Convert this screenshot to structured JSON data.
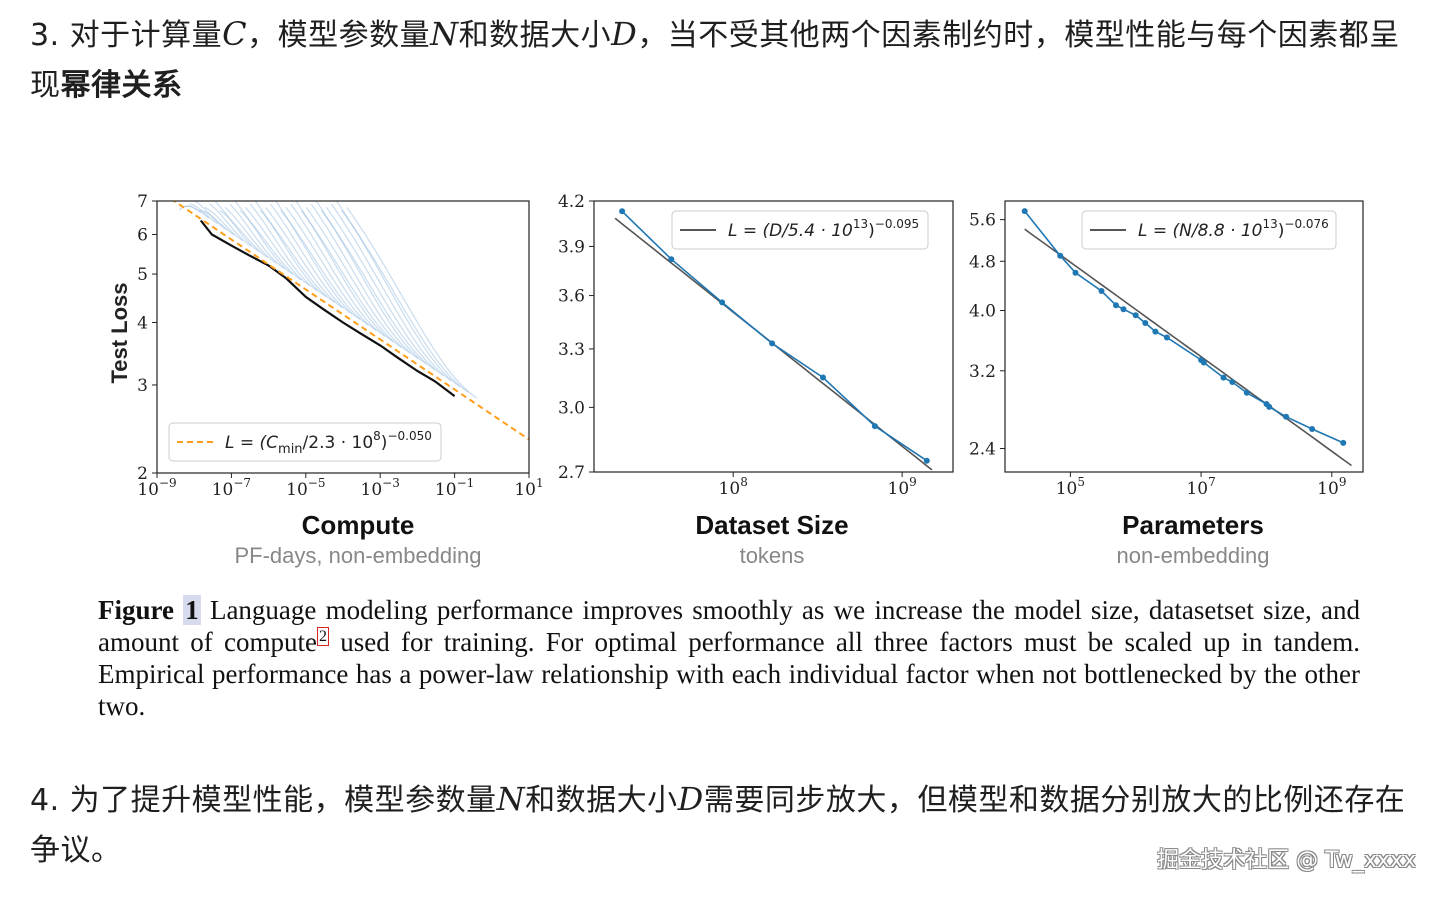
{
  "paragraph1": {
    "prefix": "3. 对于计算量",
    "var_c": "C",
    "part2": "，模型参数量",
    "var_n": "N",
    "part3": "和数据大小",
    "var_d": "D",
    "part4": "，当不受其他两个因素制约时，模型性能与每个因素都呈现",
    "bold": "幂律关系"
  },
  "paragraph2": {
    "prefix": "4. 为了提升模型性能，模型参数量",
    "var_n": "N",
    "part2": "和数据大小",
    "var_d": "D",
    "part3": "需要同步放大，但模型和数据分别放大的比例还存在争议。"
  },
  "figure": {
    "caption_label": "Figure",
    "caption_num": "1",
    "caption_text_a": "  Language modeling performance improves smoothly as we increase the model size, datasetset size, and amount of compute",
    "footnote": "2",
    "caption_text_b": " used for training.  For optimal performance all three factors must be scaled up in tandem.  Empirical performance has a power-law relationship with each individual factor when not bottlenecked by the other two."
  },
  "colors": {
    "blue": "#1f77b4",
    "orange": "#ff9e1b",
    "fit_line": "#555555",
    "faint_blue": "#9dbfe0"
  },
  "watermark": "掘金技术社区 @ Tw_xxxx",
  "chart_data": [
    {
      "type": "line",
      "title": "Compute",
      "subtitle": "PF-days, non-embedding",
      "ylabel": "Test Loss",
      "xscale": "log",
      "yscale": "log",
      "xlim": [
        1e-09,
        10
      ],
      "ylim": [
        2,
        7
      ],
      "xticks": [
        1e-09,
        1e-07,
        1e-05,
        0.001,
        0.1,
        10
      ],
      "xtick_labels": [
        [
          "10",
          "−9"
        ],
        [
          "10",
          "−7"
        ],
        [
          "10",
          "−5"
        ],
        [
          "10",
          "−3"
        ],
        [
          "10",
          "−1"
        ],
        [
          "10",
          "1"
        ]
      ],
      "yticks": [
        2,
        3,
        4,
        5,
        6,
        7
      ],
      "ytick_labels": [
        "2",
        "3",
        "4",
        "5",
        "6",
        "7"
      ],
      "legend": {
        "position": "bottom-left",
        "text": "L = (C",
        "sub": "min",
        "text2": "/2.3 · 10",
        "sup1": "8",
        "text3": ")",
        "sup2": "−0.050"
      },
      "fit": {
        "coef": 230000000.0,
        "exp": -0.05,
        "x_from": 1.4e-09,
        "x_to": 10
      },
      "frontier": {
        "x": [
          1.5e-08,
          3e-08,
          1e-07,
          3e-07,
          1e-06,
          3e-06,
          1e-05,
          3e-05,
          0.0001,
          0.0003,
          0.001,
          0.003,
          0.01,
          0.03,
          0.1
        ],
        "y": [
          6.4,
          6.0,
          5.7,
          5.45,
          5.2,
          4.9,
          4.5,
          4.25,
          4.0,
          3.8,
          3.6,
          3.4,
          3.2,
          3.05,
          2.85
        ]
      },
      "curves_start_y": [
        6.7,
        6.8,
        6.9,
        7.0
      ],
      "num_learning_curves": 34
    },
    {
      "type": "line",
      "title": "Dataset Size",
      "subtitle": "tokens",
      "xscale": "log",
      "yscale": "log",
      "xlim": [
        15000000.0,
        2000000000.0
      ],
      "ylim": [
        2.7,
        4.2
      ],
      "xticks": [
        100000000.0,
        1000000000.0
      ],
      "xtick_labels": [
        [
          "10",
          "8"
        ],
        [
          "10",
          "9"
        ]
      ],
      "yticks": [
        2.7,
        3.0,
        3.3,
        3.6,
        3.9,
        4.2
      ],
      "ytick_labels": [
        "2.7",
        "3.0",
        "3.3",
        "3.6",
        "3.9",
        "4.2"
      ],
      "legend": {
        "position": "top-right",
        "text": "L = (D/5.4 · 10",
        "sup1": "13",
        "text3": ")",
        "sup2": "−0.095"
      },
      "fit": {
        "coef": 54000000000000.0,
        "exp": -0.095,
        "x_from": 20000000.0,
        "x_to": 1500000000.0
      },
      "series": [
        {
          "name": "data",
          "x": [
            22000000.0,
            43000000.0,
            86000000.0,
            170000000.0,
            340000000.0,
            690000000.0,
            1400000000.0
          ],
          "y": [
            4.13,
            3.82,
            3.56,
            3.33,
            3.15,
            2.91,
            2.75
          ]
        }
      ]
    },
    {
      "type": "line",
      "title": "Parameters",
      "subtitle": "non-embedding",
      "xscale": "log",
      "yscale": "log",
      "xlim": [
        10000.0,
        3000000000.0
      ],
      "ylim": [
        2.2,
        6.0
      ],
      "xticks": [
        100000.0,
        10000000.0,
        1000000000.0
      ],
      "xtick_labels": [
        [
          "10",
          "5"
        ],
        [
          "10",
          "7"
        ],
        [
          "10",
          "9"
        ]
      ],
      "yticks": [
        2.4,
        3.2,
        4.0,
        4.8,
        5.6
      ],
      "ytick_labels": [
        "2.4",
        "3.2",
        "4.0",
        "4.8",
        "5.6"
      ],
      "legend": {
        "position": "top-right",
        "text": "L = (N/8.8 · 10",
        "sup1": "13",
        "text3": ")",
        "sup2": "−0.076"
      },
      "fit": {
        "coef": 88000000000000.0,
        "exp": -0.076,
        "x_from": 20000.0,
        "x_to": 2000000000.0
      },
      "series": [
        {
          "name": "data",
          "x": [
            20000.0,
            70000.0,
            120000.0,
            300000.0,
            500000.0,
            650000.0,
            1000000.0,
            1400000.0,
            2000000.0,
            3000000.0,
            10000000.0,
            11000000.0,
            22000000.0,
            30000000.0,
            50000000.0,
            100000000.0,
            110000000.0,
            200000000.0,
            500000000.0,
            1500000000.0
          ],
          "y": [
            5.78,
            4.9,
            4.6,
            4.3,
            4.08,
            4.02,
            3.93,
            3.82,
            3.7,
            3.62,
            3.33,
            3.3,
            3.12,
            3.07,
            2.95,
            2.83,
            2.8,
            2.7,
            2.58,
            2.45
          ]
        }
      ]
    }
  ]
}
